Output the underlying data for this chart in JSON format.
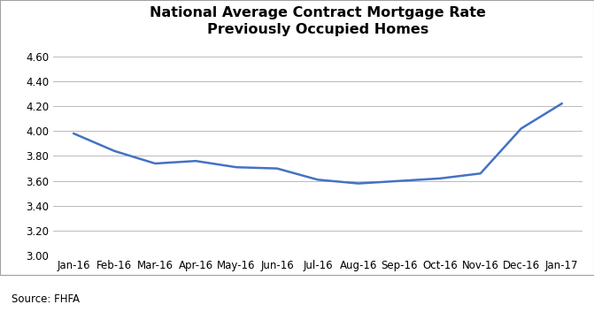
{
  "title": "National Average Contract Mortgage Rate\nPreviously Occupied Homes",
  "x_labels": [
    "Jan-16",
    "Feb-16",
    "Mar-16",
    "Apr-16",
    "May-16",
    "Jun-16",
    "Jul-16",
    "Aug-16",
    "Sep-16",
    "Oct-16",
    "Nov-16",
    "Dec-16",
    "Jan-17"
  ],
  "y_values": [
    3.98,
    3.84,
    3.74,
    3.76,
    3.71,
    3.7,
    3.61,
    3.58,
    3.6,
    3.62,
    3.66,
    4.02,
    4.22
  ],
  "line_color": "#4472C4",
  "line_width": 1.8,
  "ylim": [
    3.0,
    4.7
  ],
  "yticks": [
    3.0,
    3.2,
    3.4,
    3.6,
    3.8,
    4.0,
    4.2,
    4.4,
    4.6
  ],
  "title_fontsize": 11.5,
  "tick_fontsize": 8.5,
  "source_text": "Source: FHFA",
  "source_fontsize": 8.5,
  "background_color": "#ffffff",
  "plot_bg_color": "#ffffff",
  "grid_color": "#b0b0b0",
  "border_color": "#a0a0a0"
}
